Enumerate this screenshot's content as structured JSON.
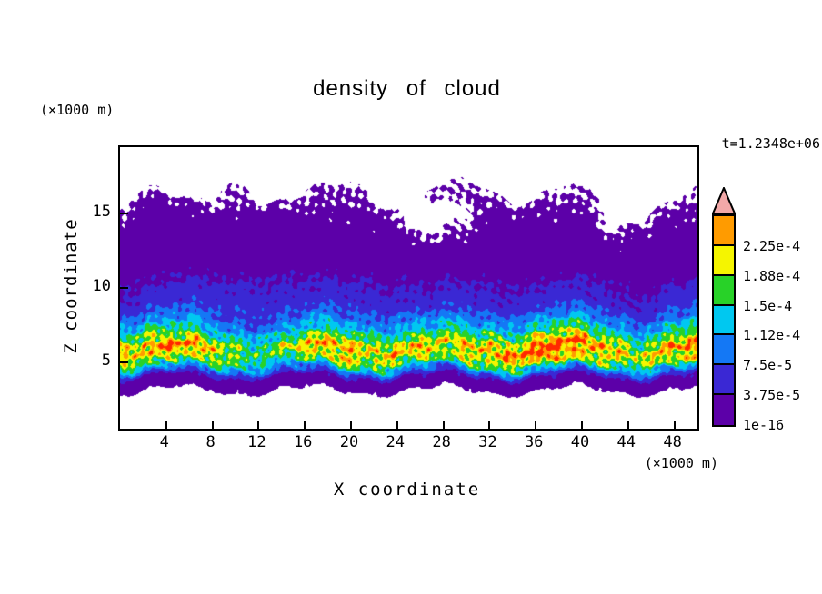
{
  "chart_data": {
    "type": "heatmap",
    "style": "filled-contour",
    "title": "density of cloud",
    "time_label": "t=1.2348e+06",
    "xlabel": "X coordinate",
    "ylabel": "Z coordinate",
    "x_unit_label": "(×1000 m)",
    "y_unit_label": "(×1000 m)",
    "x_range": [
      0,
      50
    ],
    "z_range": [
      0.5,
      19.5
    ],
    "x_ticks": [
      4,
      8,
      12,
      16,
      20,
      24,
      28,
      32,
      36,
      40,
      44,
      48
    ],
    "z_ticks": [
      5,
      10,
      15
    ],
    "value_scale": 0.0001,
    "levels": [
      1e-16,
      3.75e-05,
      7.5e-05,
      0.000112,
      0.00015,
      0.000188,
      0.000225
    ],
    "level_labels_top_to_bottom": [
      "2.25e-4",
      "1.88e-4",
      "1.5e-4",
      "1.12e-4",
      "7.5e-5",
      "3.75e-5",
      "1e-16"
    ],
    "band_colors_low_to_high": [
      "#5c00a8",
      "#3a28d4",
      "#1478f5",
      "#00c8f0",
      "#28d228",
      "#f5f500",
      "#ff9b00"
    ],
    "overflow_color": "#ff2800",
    "arrow_color": "#f2a8a8",
    "background_color": "#ffffff",
    "frame_color": "#000000",
    "grid": {
      "x": [
        0,
        2.5,
        5,
        7.5,
        10,
        12.5,
        15,
        17.5,
        20,
        22.5,
        25,
        27.5,
        30,
        32.5,
        35,
        37.5,
        40,
        42.5,
        45,
        47.5,
        50
      ],
      "z": [
        0,
        1,
        2,
        3,
        4,
        5,
        6,
        7,
        8,
        9,
        10,
        11,
        12,
        13,
        14,
        15,
        16,
        17,
        18
      ],
      "values_scaled_by_1e4": [
        [
          0,
          0,
          0,
          0,
          0,
          0,
          0,
          0,
          0,
          0,
          0,
          0,
          0,
          0,
          0,
          0,
          0,
          0,
          0,
          0,
          0
        ],
        [
          0,
          0,
          0,
          0,
          0,
          0,
          0,
          0,
          0,
          0,
          0,
          0,
          0,
          0,
          0,
          0,
          0,
          0,
          0,
          0,
          0
        ],
        [
          0,
          0,
          0,
          0,
          0,
          0,
          0,
          0,
          0,
          0,
          0,
          0,
          0,
          0,
          0,
          0,
          0,
          0,
          0,
          0,
          0
        ],
        [
          0,
          0,
          0,
          0,
          0,
          0,
          0,
          0,
          0,
          0,
          0,
          0,
          0,
          0,
          0,
          0,
          0,
          0,
          0,
          0,
          0
        ],
        [
          0.3,
          0.35,
          0.35,
          0.3,
          0.28,
          0.28,
          0.3,
          0.32,
          0.33,
          0.33,
          0.32,
          0.3,
          0.32,
          0.35,
          0.35,
          0.36,
          0.35,
          0.33,
          0.3,
          0.33,
          0.34
        ],
        [
          1.8,
          2.0,
          2.0,
          1.7,
          1.45,
          1.45,
          1.6,
          1.8,
          1.85,
          1.9,
          1.85,
          1.6,
          1.8,
          2.0,
          2.05,
          2.1,
          2.05,
          1.85,
          1.6,
          1.85,
          1.95
        ],
        [
          2.2,
          2.5,
          2.5,
          2.1,
          1.8,
          1.8,
          2.0,
          2.2,
          2.3,
          2.35,
          2.27,
          2.0,
          2.2,
          2.48,
          2.56,
          2.62,
          2.52,
          2.31,
          2.0,
          2.31,
          2.42
        ],
        [
          1.4,
          1.6,
          1.6,
          1.35,
          1.15,
          1.15,
          1.3,
          1.4,
          1.5,
          1.5,
          1.45,
          1.3,
          1.4,
          1.6,
          1.65,
          1.7,
          1.6,
          1.5,
          1.3,
          1.5,
          1.55
        ],
        [
          0.84,
          0.96,
          0.96,
          0.8,
          0.68,
          0.68,
          0.76,
          0.84,
          0.88,
          0.9,
          0.86,
          0.76,
          0.84,
          0.94,
          0.98,
          1.0,
          0.96,
          0.88,
          0.76,
          0.88,
          0.92
        ],
        [
          0.5,
          0.55,
          0.55,
          0.58,
          0.62,
          0.6,
          0.52,
          0.55,
          0.58,
          0.55,
          0.5,
          0.45,
          0.5,
          0.52,
          0.55,
          0.55,
          0.52,
          0.5,
          0.45,
          0.5,
          0.52
        ],
        [
          0.38,
          0.4,
          0.42,
          0.45,
          0.5,
          0.47,
          0.4,
          0.42,
          0.46,
          0.42,
          0.38,
          0.35,
          0.38,
          0.4,
          0.42,
          0.4,
          0.38,
          0.37,
          0.35,
          0.38,
          0.4
        ],
        [
          0.25,
          0.27,
          0.28,
          0.32,
          0.34,
          0.32,
          0.28,
          0.29,
          0.31,
          0.29,
          0.25,
          0.22,
          0.25,
          0.26,
          0.27,
          0.27,
          0.25,
          0.24,
          0.22,
          0.25,
          0.26
        ],
        [
          0.15,
          0.16,
          0.17,
          0.19,
          0.2,
          0.19,
          0.17,
          0.17,
          0.18,
          0.17,
          0.15,
          0.13,
          0.15,
          0.16,
          0.16,
          0.16,
          0.15,
          0.14,
          0.13,
          0.15,
          0.16
        ],
        [
          0.11,
          0.12,
          0.12,
          0.13,
          0.14,
          0.13,
          0.12,
          0.12,
          0.13,
          0.12,
          0.06,
          0.03,
          0.07,
          0.11,
          0.11,
          0.11,
          0.1,
          0.06,
          0.09,
          0.1,
          0.11
        ],
        [
          0.09,
          0.1,
          0.1,
          0.11,
          0.11,
          0.1,
          0.09,
          0.1,
          0.1,
          0.09,
          0,
          0,
          0.03,
          0.09,
          0.09,
          0.09,
          0.08,
          0,
          0.05,
          0.08,
          0.09
        ],
        [
          0.03,
          0.07,
          0.08,
          0.07,
          0.08,
          0.07,
          0.04,
          0.06,
          0.07,
          0.06,
          0,
          0,
          0,
          0.06,
          0.06,
          0.06,
          0.05,
          0,
          0,
          0.05,
          0.06
        ],
        [
          0,
          0.04,
          0,
          0,
          0.04,
          0,
          0,
          0.04,
          0.05,
          0,
          0,
          0.03,
          0.04,
          0.03,
          0,
          0.03,
          0.03,
          0,
          0,
          0,
          0.03
        ],
        [
          0,
          0,
          0,
          0,
          0.02,
          0,
          0,
          0,
          0.02,
          0,
          0,
          0,
          0.02,
          0,
          0,
          0,
          0,
          0,
          0,
          0,
          0
        ],
        [
          0,
          0,
          0,
          0,
          0,
          0,
          0,
          0,
          0,
          0,
          0,
          0,
          0,
          0,
          0,
          0,
          0,
          0,
          0,
          0,
          0
        ]
      ]
    }
  }
}
